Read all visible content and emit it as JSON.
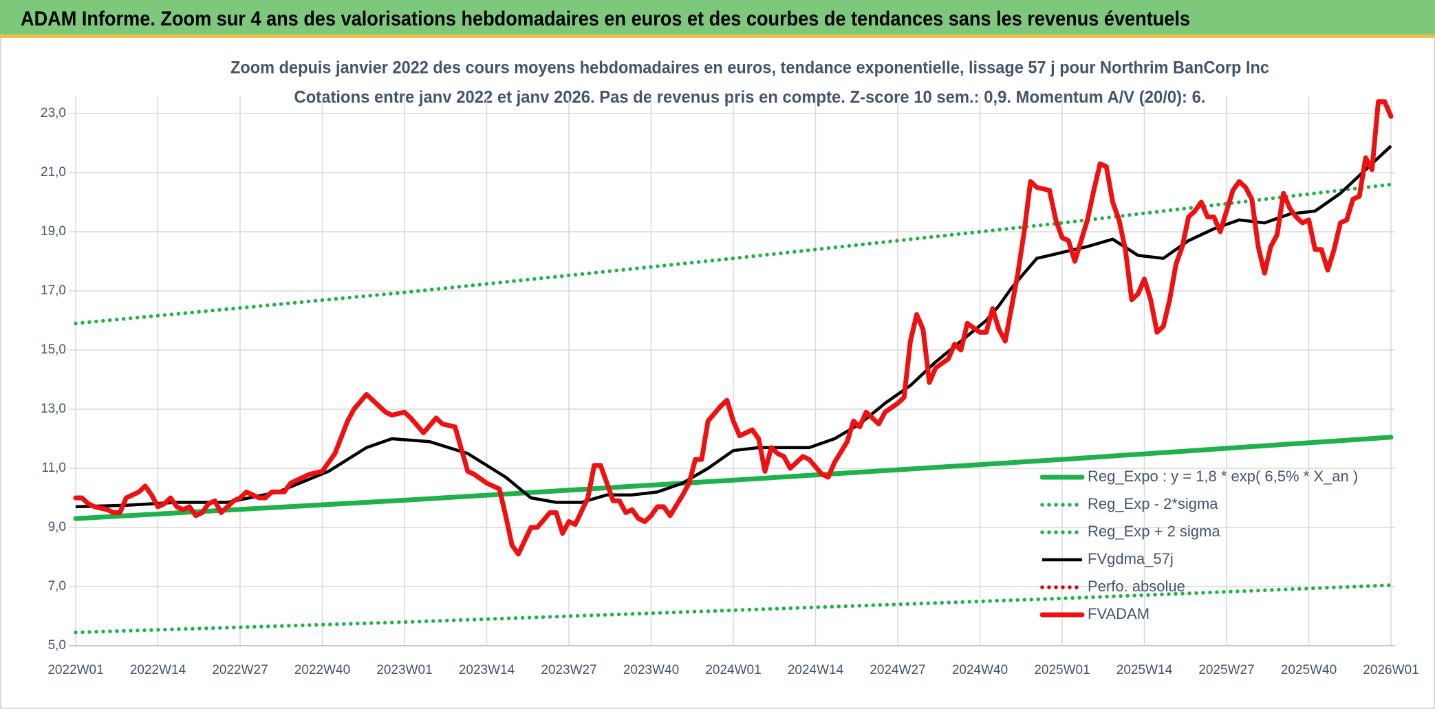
{
  "header": {
    "title": "ADAM Informe. Zoom sur 4 ans des valorisations hebdomadaires en euros et des courbes de tendances sans les revenus éventuels"
  },
  "chart_data": {
    "type": "line",
    "title": "Zoom depuis janvier 2022 des cours moyens hebdomadaires en euros, tendance exponentielle, lissage 57 j pour Northrim BanCorp Inc",
    "subtitle": "Cotations entre janv 2022 et janv 2026. Pas de revenus pris en compte. Z-score 10 sem.: 0,9. Momentum A/V (20/0): 6.",
    "xlim": [
      0,
      208
    ],
    "xticks": [
      {
        "value": 0,
        "label": "2022W01"
      },
      {
        "value": 13,
        "label": "2022W14"
      },
      {
        "value": 26,
        "label": "2022W27"
      },
      {
        "value": 39,
        "label": "2022W40"
      },
      {
        "value": 52,
        "label": "2023W01"
      },
      {
        "value": 65,
        "label": "2023W14"
      },
      {
        "value": 78,
        "label": "2023W27"
      },
      {
        "value": 91,
        "label": "2023W40"
      },
      {
        "value": 104,
        "label": "2024W01"
      },
      {
        "value": 117,
        "label": "2024W14"
      },
      {
        "value": 130,
        "label": "2024W27"
      },
      {
        "value": 143,
        "label": "2024W40"
      },
      {
        "value": 156,
        "label": "2025W01"
      },
      {
        "value": 169,
        "label": "2025W14"
      },
      {
        "value": 182,
        "label": "2025W27"
      },
      {
        "value": 195,
        "label": "2025W40"
      },
      {
        "value": 208,
        "label": "2026W01"
      }
    ],
    "ylim": [
      5,
      23.6
    ],
    "yticks": [
      {
        "value": 5,
        "label": "5,0"
      },
      {
        "value": 7,
        "label": "7,0"
      },
      {
        "value": 9,
        "label": "9,0"
      },
      {
        "value": 11,
        "label": "11,0"
      },
      {
        "value": 13,
        "label": "13,0"
      },
      {
        "value": 15,
        "label": "15,0"
      },
      {
        "value": 17,
        "label": "17,0"
      },
      {
        "value": 19,
        "label": "19,0"
      },
      {
        "value": 21,
        "label": "21,0"
      },
      {
        "value": 23,
        "label": "23,0"
      }
    ],
    "grid": true,
    "legend_position": "lower right",
    "series": [
      {
        "name": "Reg_Expo : y = 1,8 * exp( 6,5% *  X_an )",
        "color": "#1fb14c",
        "style": "solid",
        "x": [
          0,
          52,
          104,
          156,
          208
        ],
        "values": [
          9.3,
          9.92,
          10.6,
          11.3,
          12.05
        ]
      },
      {
        "name": "Reg_Exp - 2*sigma",
        "color": "#1fb14c",
        "style": "dotted",
        "x": [
          0,
          52,
          104,
          156,
          208
        ],
        "values": [
          5.45,
          5.8,
          6.2,
          6.6,
          7.05
        ]
      },
      {
        "name": "Reg_Exp + 2 sigma",
        "color": "#1fb14c",
        "style": "dotted",
        "x": [
          0,
          52,
          104,
          156,
          208
        ],
        "values": [
          15.9,
          16.95,
          18.1,
          19.3,
          20.6
        ]
      },
      {
        "name": "FVgdma_57j",
        "color": "#000000",
        "style": "thin",
        "x": [
          0,
          8,
          16,
          24,
          32,
          40,
          46,
          50,
          56,
          62,
          68,
          72,
          76,
          80,
          84,
          88,
          92,
          96,
          100,
          104,
          108,
          112,
          116,
          120,
          124,
          128,
          132,
          136,
          140,
          144,
          146,
          148,
          150,
          152,
          156,
          160,
          164,
          168,
          172,
          176,
          180,
          184,
          188,
          192,
          196,
          200,
          204,
          208
        ],
        "values": [
          9.7,
          9.75,
          9.85,
          9.85,
          10.2,
          10.9,
          11.7,
          12.0,
          11.9,
          11.5,
          10.7,
          10.0,
          9.85,
          9.85,
          10.1,
          10.1,
          10.2,
          10.5,
          11.0,
          11.6,
          11.7,
          11.7,
          11.7,
          12.0,
          12.5,
          13.2,
          13.8,
          14.6,
          15.3,
          16.0,
          16.5,
          17.1,
          17.6,
          18.1,
          18.3,
          18.5,
          18.75,
          18.2,
          18.1,
          18.7,
          19.1,
          19.4,
          19.3,
          19.6,
          19.7,
          20.3,
          21.1,
          21.9
        ]
      },
      {
        "name": "Perfo. absolue",
        "color": "#e00000",
        "style": "dotted",
        "x": [],
        "values": []
      },
      {
        "name": "FVADAM",
        "color": "#ee1111",
        "style": "thick",
        "x": [
          0,
          1,
          2,
          3,
          5,
          6,
          7,
          8,
          9,
          10,
          11,
          12,
          13,
          14,
          15,
          16,
          17,
          18,
          19,
          20,
          21,
          22,
          23,
          24,
          25,
          26,
          27,
          28,
          29,
          30,
          31,
          32,
          33,
          34,
          36,
          37,
          39,
          40,
          41,
          43,
          44,
          46,
          47,
          49,
          50,
          52,
          53,
          55,
          57,
          58,
          60,
          62,
          63,
          65,
          67,
          68,
          69,
          70,
          72,
          73,
          75,
          76,
          77,
          78,
          79,
          81,
          82,
          83,
          84,
          85,
          86,
          87,
          88,
          89,
          90,
          91,
          92,
          93,
          94,
          96,
          97,
          98,
          99,
          100,
          102,
          103,
          104,
          105,
          107,
          108,
          109,
          110,
          111,
          112,
          113,
          115,
          116,
          118,
          119,
          120,
          122,
          123,
          124,
          125,
          126,
          127,
          128,
          130,
          131,
          132,
          133,
          134,
          135,
          136,
          138,
          139,
          140,
          141,
          143,
          144,
          145,
          146,
          147,
          149,
          150,
          151,
          152,
          154,
          155,
          156,
          157,
          158,
          159,
          160,
          161,
          162,
          163,
          164,
          165,
          166,
          167,
          168,
          169,
          170,
          171,
          172,
          173,
          174,
          175,
          176,
          177,
          178,
          179,
          180,
          181,
          182,
          183,
          184,
          185,
          186,
          187,
          188,
          189,
          190,
          191,
          192,
          193,
          194,
          195,
          196,
          197,
          198,
          199,
          200,
          201,
          202,
          203,
          204,
          205,
          206,
          207,
          208
        ],
        "values": [
          10.0,
          10.0,
          9.8,
          9.7,
          9.6,
          9.5,
          9.5,
          10.0,
          10.1,
          10.2,
          10.4,
          10.1,
          9.7,
          9.8,
          10.0,
          9.7,
          9.6,
          9.7,
          9.4,
          9.5,
          9.8,
          9.9,
          9.5,
          9.7,
          9.9,
          10.0,
          10.2,
          10.1,
          10.0,
          10.0,
          10.2,
          10.2,
          10.2,
          10.5,
          10.7,
          10.8,
          10.9,
          11.2,
          11.5,
          12.6,
          13.0,
          13.5,
          13.3,
          12.9,
          12.8,
          12.9,
          12.7,
          12.2,
          12.7,
          12.5,
          12.4,
          10.9,
          10.8,
          10.5,
          10.3,
          9.4,
          8.4,
          8.1,
          9.0,
          9.0,
          9.5,
          9.5,
          8.8,
          9.2,
          9.1,
          10.0,
          11.1,
          11.1,
          10.5,
          9.9,
          9.9,
          9.5,
          9.6,
          9.3,
          9.2,
          9.4,
          9.7,
          9.7,
          9.4,
          10.1,
          10.5,
          11.3,
          11.3,
          12.6,
          13.1,
          13.3,
          12.6,
          12.1,
          12.3,
          12.0,
          10.9,
          11.7,
          11.5,
          11.4,
          11.0,
          11.4,
          11.3,
          10.8,
          10.7,
          11.2,
          11.9,
          12.6,
          12.4,
          12.9,
          12.7,
          12.5,
          12.9,
          13.2,
          13.4,
          15.3,
          16.2,
          15.7,
          13.9,
          14.4,
          14.7,
          15.2,
          15.0,
          15.9,
          15.6,
          15.6,
          16.4,
          15.7,
          15.3,
          17.6,
          19.0,
          20.7,
          20.5,
          20.4,
          19.4,
          18.8,
          18.7,
          18.0,
          18.7,
          19.4,
          20.4,
          21.3,
          21.2,
          20.0,
          19.4,
          18.4,
          16.7,
          16.9,
          17.4,
          16.7,
          15.6,
          15.8,
          16.7,
          17.9,
          18.5,
          19.5,
          19.7,
          20.0,
          19.5,
          19.5,
          19.0,
          19.7,
          20.4,
          20.7,
          20.5,
          20.1,
          18.5,
          17.6,
          18.5,
          18.9,
          20.3,
          19.8,
          19.5,
          19.3,
          19.4,
          18.4,
          18.4,
          17.7,
          18.4,
          19.3,
          19.4,
          20.1,
          20.2,
          21.5,
          21.1,
          23.4,
          23.4,
          22.9
        ]
      }
    ]
  }
}
